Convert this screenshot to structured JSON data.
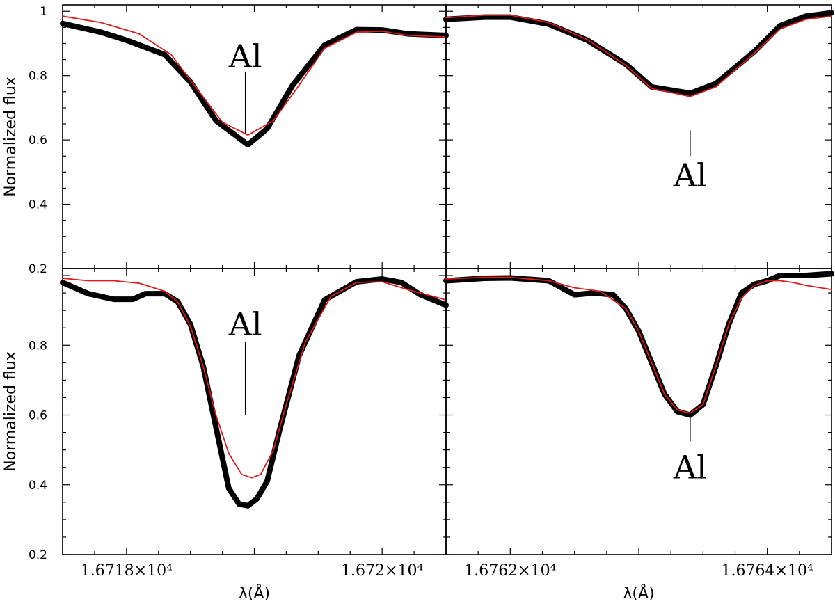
{
  "chart_data": [
    {
      "type": "line",
      "panel": "top-left",
      "ylabel": "Normalized flux",
      "xlim": [
        16717.5,
        16720.5
      ],
      "ylim": [
        0.2,
        1.02
      ],
      "yticks": [
        "1",
        "0.8",
        "0.6",
        "0.4",
        "0.2"
      ],
      "xticks": [],
      "annotation": {
        "text": "Al",
        "x": 16718.93,
        "line_from": 0.62,
        "line_to": 0.81,
        "text_y": 0.86
      },
      "series": [
        {
          "color": "#000000",
          "x": [
            16717.5,
            16717.8,
            16718.0,
            16718.3,
            16718.5,
            16718.7,
            16718.95,
            16719.1,
            16719.3,
            16719.55,
            16719.8,
            16720.0,
            16720.2,
            16720.5
          ],
          "y": [
            0.962,
            0.935,
            0.91,
            0.865,
            0.78,
            0.66,
            0.585,
            0.635,
            0.77,
            0.895,
            0.943,
            0.942,
            0.93,
            0.925
          ]
        },
        {
          "color": "#e0191b",
          "x": [
            16717.5,
            16717.8,
            16718.1,
            16718.35,
            16718.55,
            16718.75,
            16718.95,
            16719.15,
            16719.35,
            16719.55,
            16719.8,
            16720.0,
            16720.2,
            16720.5
          ],
          "y": [
            0.985,
            0.965,
            0.93,
            0.865,
            0.76,
            0.655,
            0.615,
            0.66,
            0.77,
            0.885,
            0.935,
            0.938,
            0.925,
            0.92
          ]
        }
      ]
    },
    {
      "type": "line",
      "panel": "top-right",
      "xlim": [
        16761.5,
        16764.5
      ],
      "ylim": [
        0.2,
        1.02
      ],
      "yticks": [],
      "xticks": [],
      "annotation": {
        "text": "Al",
        "x": 16763.4,
        "line_from": 0.63,
        "line_to": 0.55,
        "text_y": 0.49
      },
      "series": [
        {
          "color": "#000000",
          "x": [
            16761.5,
            16761.8,
            16762.0,
            16762.3,
            16762.6,
            16762.9,
            16763.1,
            16763.4,
            16763.6,
            16763.9,
            16764.1,
            16764.3,
            16764.5
          ],
          "y": [
            0.975,
            0.982,
            0.982,
            0.96,
            0.91,
            0.835,
            0.765,
            0.745,
            0.775,
            0.875,
            0.955,
            0.985,
            0.995
          ]
        },
        {
          "color": "#e0191b",
          "x": [
            16761.5,
            16761.8,
            16762.0,
            16762.3,
            16762.6,
            16762.9,
            16763.1,
            16763.4,
            16763.6,
            16763.9,
            16764.1,
            16764.3,
            16764.5
          ],
          "y": [
            0.98,
            0.988,
            0.988,
            0.965,
            0.912,
            0.832,
            0.76,
            0.735,
            0.765,
            0.87,
            0.945,
            0.975,
            0.985
          ]
        }
      ]
    },
    {
      "type": "line",
      "panel": "bottom-left",
      "ylabel": "Normalized flux",
      "xlim": [
        16717.5,
        16720.5
      ],
      "ylim": [
        0.2,
        1.02
      ],
      "yticks": [
        "0.8",
        "0.6",
        "0.4",
        "0.2"
      ],
      "xticks": [
        "1.6718×10⁴",
        "1.672×10⁴"
      ],
      "xlabel": "λ(Å)",
      "annotation": {
        "text": "Al",
        "x": 16718.93,
        "line_from": 0.6,
        "line_to": 0.81,
        "text_y": 0.86
      },
      "series": [
        {
          "color": "#000000",
          "x": [
            16717.5,
            16717.7,
            16717.9,
            16718.05,
            16718.15,
            16718.3,
            16718.4,
            16718.5,
            16718.6,
            16718.7,
            16718.8,
            16718.88,
            16718.95,
            16719.02,
            16719.1,
            16719.2,
            16719.35,
            16719.55,
            16719.8,
            16720.0,
            16720.15,
            16720.3,
            16720.5
          ],
          "y": [
            0.98,
            0.948,
            0.932,
            0.932,
            0.948,
            0.948,
            0.925,
            0.86,
            0.74,
            0.565,
            0.39,
            0.345,
            0.34,
            0.36,
            0.41,
            0.56,
            0.77,
            0.93,
            0.982,
            0.99,
            0.98,
            0.945,
            0.915
          ]
        },
        {
          "color": "#e0191b",
          "x": [
            16717.5,
            16717.7,
            16717.9,
            16718.1,
            16718.3,
            16718.4,
            16718.5,
            16718.6,
            16718.7,
            16718.8,
            16718.9,
            16718.98,
            16719.05,
            16719.15,
            16719.25,
            16719.4,
            16719.6,
            16719.8,
            16720.0,
            16720.2,
            16720.5
          ],
          "y": [
            0.992,
            0.985,
            0.985,
            0.978,
            0.955,
            0.925,
            0.855,
            0.74,
            0.6,
            0.49,
            0.43,
            0.42,
            0.43,
            0.5,
            0.63,
            0.81,
            0.94,
            0.98,
            0.982,
            0.96,
            0.93
          ]
        }
      ]
    },
    {
      "type": "line",
      "panel": "bottom-right",
      "xlim": [
        16761.5,
        16764.5
      ],
      "ylim": [
        0.2,
        1.02
      ],
      "yticks": [],
      "xticks": [
        "1.6762×10⁴",
        "1.6764×10⁴"
      ],
      "xlabel": "λ(Å)",
      "annotation": {
        "text": "Al",
        "x": 16763.4,
        "line_from": 0.61,
        "line_to": 0.525,
        "text_y": 0.45
      },
      "series": [
        {
          "color": "#000000",
          "x": [
            16761.5,
            16761.8,
            16762.0,
            16762.3,
            16762.5,
            16762.65,
            16762.8,
            16762.9,
            16763.0,
            16763.1,
            16763.2,
            16763.3,
            16763.4,
            16763.5,
            16763.6,
            16763.7,
            16763.8,
            16763.9,
            16764.0,
            16764.1,
            16764.2,
            16764.3,
            16764.5
          ],
          "y": [
            0.985,
            0.992,
            0.993,
            0.985,
            0.945,
            0.95,
            0.945,
            0.905,
            0.84,
            0.75,
            0.66,
            0.61,
            0.6,
            0.63,
            0.74,
            0.86,
            0.95,
            0.975,
            0.985,
            1.0,
            1.0,
            1.0,
            1.005
          ]
        },
        {
          "color": "#e0191b",
          "x": [
            16761.5,
            16761.8,
            16762.0,
            16762.3,
            16762.5,
            16762.7,
            16762.9,
            16763.0,
            16763.1,
            16763.2,
            16763.3,
            16763.4,
            16763.5,
            16763.6,
            16763.7,
            16763.8,
            16763.9,
            16764.0,
            16764.1,
            16764.2,
            16764.3,
            16764.5
          ],
          "y": [
            0.99,
            0.995,
            0.995,
            0.985,
            0.965,
            0.955,
            0.905,
            0.84,
            0.75,
            0.66,
            0.615,
            0.605,
            0.63,
            0.74,
            0.86,
            0.935,
            0.972,
            0.985,
            0.985,
            0.98,
            0.972,
            0.96
          ]
        }
      ]
    }
  ]
}
